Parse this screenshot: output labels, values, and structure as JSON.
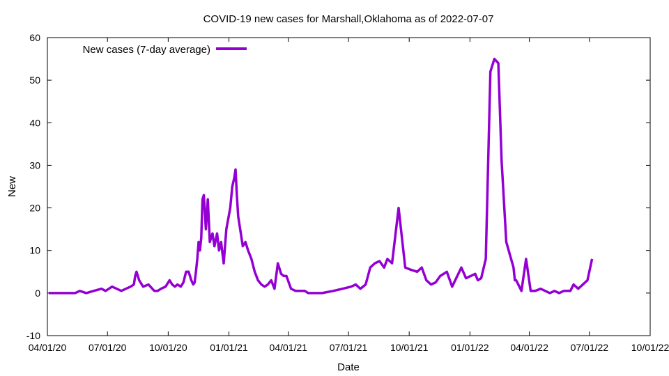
{
  "chart_data": {
    "type": "line",
    "title": "COVID-19 new cases for Marshall,Oklahoma as of 2022-07-07",
    "xlabel": "Date",
    "ylabel": "New",
    "xlim": [
      "2020-04-01",
      "2022-10-01"
    ],
    "ylim": [
      -10,
      60
    ],
    "grid": false,
    "legend_position": "top-left",
    "x_ticks": [
      "04/01/20",
      "07/01/20",
      "10/01/20",
      "01/01/21",
      "04/01/21",
      "07/01/21",
      "10/01/21",
      "01/01/22",
      "04/01/22",
      "07/01/22",
      "10/01/22"
    ],
    "y_ticks": [
      "-10",
      "0",
      "10",
      "20",
      "30",
      "40",
      "50",
      "60"
    ],
    "series": [
      {
        "name": "New cases (7-day average)",
        "color": "#9400d3",
        "x": [
          "2020-04-03",
          "2020-04-15",
          "2020-05-01",
          "2020-05-13",
          "2020-05-20",
          "2020-05-30",
          "2020-06-10",
          "2020-06-22",
          "2020-06-28",
          "2020-07-08",
          "2020-07-15",
          "2020-07-22",
          "2020-07-29",
          "2020-08-05",
          "2020-08-10",
          "2020-08-12",
          "2020-08-14",
          "2020-08-18",
          "2020-08-24",
          "2020-09-01",
          "2020-09-07",
          "2020-09-10",
          "2020-09-15",
          "2020-09-20",
          "2020-09-27",
          "2020-10-03",
          "2020-10-07",
          "2020-10-11",
          "2020-10-15",
          "2020-10-20",
          "2020-10-24",
          "2020-10-28",
          "2020-11-01",
          "2020-11-05",
          "2020-11-08",
          "2020-11-10",
          "2020-11-12",
          "2020-11-14",
          "2020-11-16",
          "2020-11-18",
          "2020-11-20",
          "2020-11-22",
          "2020-11-24",
          "2020-11-27",
          "2020-11-30",
          "2020-12-03",
          "2020-12-07",
          "2020-12-10",
          "2020-12-14",
          "2020-12-17",
          "2020-12-20",
          "2020-12-24",
          "2020-12-28",
          "2021-01-03",
          "2021-01-06",
          "2021-01-09",
          "2021-01-11",
          "2021-01-13",
          "2021-01-15",
          "2021-01-19",
          "2021-01-22",
          "2021-01-26",
          "2021-01-30",
          "2021-02-04",
          "2021-02-09",
          "2021-02-14",
          "2021-02-19",
          "2021-02-24",
          "2021-03-01",
          "2021-03-06",
          "2021-03-11",
          "2021-03-16",
          "2021-03-21",
          "2021-03-25",
          "2021-03-27",
          "2021-03-29",
          "2021-04-05",
          "2021-04-12",
          "2021-04-26",
          "2021-05-01",
          "2021-05-15",
          "2021-05-22",
          "2021-06-08",
          "2021-06-22",
          "2021-07-05",
          "2021-07-12",
          "2021-07-19",
          "2021-07-27",
          "2021-08-03",
          "2021-08-10",
          "2021-08-17",
          "2021-08-24",
          "2021-08-29",
          "2021-09-05",
          "2021-09-15",
          "2021-09-25",
          "2021-10-03",
          "2021-10-13",
          "2021-10-20",
          "2021-10-27",
          "2021-11-03",
          "2021-11-10",
          "2021-11-17",
          "2021-11-27",
          "2021-12-05",
          "2021-12-19",
          "2021-12-26",
          "2022-01-02",
          "2022-01-09",
          "2022-01-13",
          "2022-01-18",
          "2022-01-25",
          "2022-02-01",
          "2022-02-07",
          "2022-02-13",
          "2022-02-18",
          "2022-02-25",
          "2022-03-08",
          "2022-03-10",
          "2022-03-12",
          "2022-03-20",
          "2022-03-27",
          "2022-04-03",
          "2022-04-10",
          "2022-04-18",
          "2022-04-25",
          "2022-05-02",
          "2022-05-09",
          "2022-05-16",
          "2022-05-23",
          "2022-06-02",
          "2022-06-07",
          "2022-06-14",
          "2022-06-21",
          "2022-06-28",
          "2022-07-05"
        ],
        "y": [
          0,
          0,
          0,
          0,
          0.5,
          0,
          0.5,
          1,
          0.5,
          1.5,
          1,
          0.5,
          1,
          1.5,
          2,
          4,
          5,
          3,
          1.5,
          2,
          1,
          0.5,
          0.5,
          1,
          1.5,
          3,
          2,
          1.5,
          2,
          1.5,
          2.5,
          5,
          5,
          3,
          2,
          2.5,
          5,
          8,
          12,
          10,
          13,
          22,
          23,
          15,
          22,
          12,
          14,
          11,
          14,
          10,
          12,
          7,
          15,
          20,
          25,
          27,
          29,
          23,
          18,
          14,
          11,
          12,
          10,
          8,
          5,
          3,
          2,
          1.5,
          2,
          3,
          1,
          7,
          4.5,
          4,
          4,
          4,
          1,
          0.5,
          0.5,
          0,
          0,
          0,
          0.5,
          1,
          1.5,
          2,
          1,
          2,
          6,
          7,
          7.5,
          6,
          8,
          7,
          20,
          6,
          5.5,
          5,
          6,
          3,
          2,
          2.5,
          4,
          5,
          1.5,
          6,
          3.5,
          4,
          4.5,
          3,
          3.5,
          8,
          52,
          55,
          54,
          31,
          12,
          6,
          3,
          3,
          0.5,
          8,
          0.5,
          0.5,
          1,
          0.5,
          0,
          0.5,
          0,
          0.5,
          0.5,
          2,
          1,
          2,
          3,
          8
        ]
      }
    ]
  }
}
